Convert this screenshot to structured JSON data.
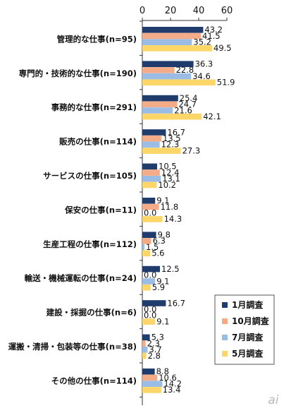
{
  "chart_data": {
    "type": "bar",
    "orientation": "horizontal",
    "categories": [
      "管理的な仕事(n=95)",
      "専門的・技術的な仕事(n=190)",
      "事務的な仕事(n=291)",
      "販売の仕事(n=114)",
      "サービスの仕事(n=105)",
      "保安の仕事(n=11)",
      "生産工程の仕事(n=112)",
      "輸送・機械運転の仕事(n=24)",
      "建設・採掘の仕事(n=6)",
      "運搬・清掃・包装等の仕事(n=38)",
      "その他の仕事(n=114)"
    ],
    "series": [
      {
        "name": "1月調査",
        "color": "#1f3c6d",
        "values": [
          43.2,
          36.3,
          25.4,
          16.7,
          10.5,
          9.1,
          9.8,
          12.5,
          16.7,
          5.3,
          8.8
        ]
      },
      {
        "name": "10月調査",
        "color": "#f4ab88",
        "values": [
          41.5,
          22.8,
          24.7,
          13.5,
          12.4,
          11.8,
          6.3,
          0.0,
          0.0,
          2.3,
          10.6
        ]
      },
      {
        "name": "7月調査",
        "color": "#9bbce4",
        "values": [
          35.2,
          34.6,
          21.6,
          12.3,
          13.1,
          0.0,
          1.5,
          9.1,
          0.0,
          3.7,
          14.2
        ]
      },
      {
        "name": "5月調査",
        "color": "#fcd668",
        "values": [
          49.5,
          51.9,
          42.1,
          27.3,
          10.2,
          14.3,
          5.6,
          5.9,
          9.1,
          2.8,
          13.4
        ]
      }
    ],
    "value_labels": [
      [
        "43.2",
        "36.3",
        "25.4",
        "16.7",
        "10.5",
        "9.1",
        "9.8",
        "12.5",
        "16.7",
        "5.3",
        "8.8"
      ],
      [
        "41.5",
        "22.8",
        "24.7",
        "13.5",
        "12.4",
        "11.8",
        "6.3",
        "0.0",
        "0.0",
        "2.3",
        "10.6"
      ],
      [
        "35.2",
        "34.6",
        "21.6",
        "12.3",
        "13.1",
        "0.0",
        "1.5",
        "9.1",
        "0.0",
        "3.7",
        "14.2"
      ],
      [
        "49.5",
        "51.9",
        "42.1",
        "27.3",
        "10.2",
        "14.3",
        "5.6",
        "5.9",
        "9.1",
        "2.8",
        "13.4"
      ]
    ],
    "x_ticks": [
      "0",
      "20",
      "40",
      "60"
    ],
    "xlim": [
      0,
      60
    ],
    "axis_position": "top",
    "grid": false,
    "legend_position": "bottom-right",
    "title": "",
    "xlabel": "",
    "ylabel": ""
  },
  "watermark": "ai"
}
